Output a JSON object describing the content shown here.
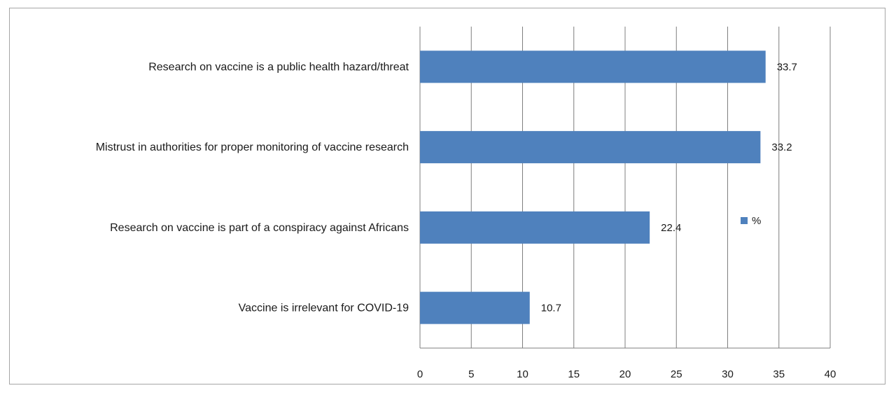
{
  "chart_data": {
    "type": "bar",
    "orientation": "horizontal",
    "categories": [
      "Research on vaccine is a public health hazard/threat",
      "Mistrust in authorities for proper monitoring of vaccine research",
      "Research on vaccine is part of a conspiracy against Africans",
      "Vaccine is irrelevant for COVID-19"
    ],
    "series": [
      {
        "name": "%",
        "values": [
          33.7,
          33.2,
          22.4,
          10.7
        ]
      }
    ],
    "data_labels": [
      "33.7",
      "33.2",
      "22.4",
      "10.7"
    ],
    "xlim": [
      0,
      40
    ],
    "x_ticks": [
      "0",
      "5",
      "10",
      "15",
      "20",
      "25",
      "30",
      "35",
      "40"
    ],
    "grid": true,
    "legend": {
      "position": "right",
      "entries": [
        "%"
      ]
    },
    "bar_color": "#4f81bd",
    "gridline_color": "#7f7f7f"
  }
}
